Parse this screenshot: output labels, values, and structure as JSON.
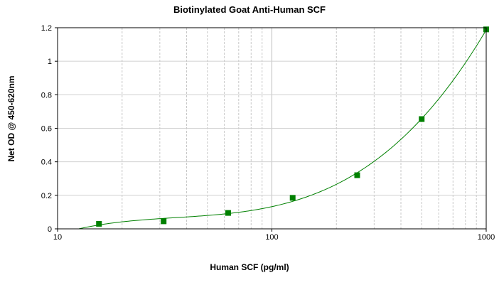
{
  "chart_data": {
    "type": "scatter",
    "title": "Biotinylated Goat Anti-Human SCF",
    "xlabel": "Human SCF (pg/ml)",
    "ylabel": "Net OD @ 450-620nm",
    "xscale": "log",
    "xlim": [
      10,
      1000
    ],
    "ylim": [
      0,
      1.2
    ],
    "x_ticks": [
      10,
      100,
      1000
    ],
    "x_tick_labels": [
      "10",
      "100",
      "1000"
    ],
    "y_ticks": [
      0,
      0.2,
      0.4,
      0.6,
      0.8,
      1,
      1.2
    ],
    "y_tick_labels": [
      "0",
      "0.2",
      "0.4",
      "0.6",
      "0.8",
      "1",
      "1.2"
    ],
    "grid": true,
    "legend": "none",
    "series": [
      {
        "x": [
          15.6,
          31.25,
          62.5,
          125,
          250,
          500,
          1000
        ],
        "y": [
          0.03,
          0.045,
          0.095,
          0.185,
          0.32,
          0.655,
          1.19
        ],
        "marker": "square",
        "color": "#008000",
        "fit_curve": true
      }
    ]
  }
}
